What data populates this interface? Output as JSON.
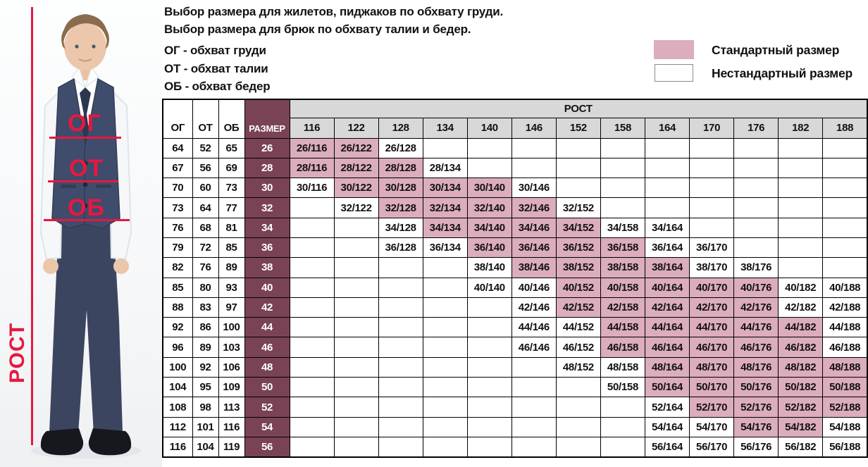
{
  "header": {
    "title_line1": "Выбор размера для жилетов, пиджаков по обхвату груди.",
    "title_line2": "Выбор размера для брюк по обхвату талии и бедер.",
    "abbr_chest": "ОГ - обхват груди",
    "abbr_waist": "ОТ - обхват талии",
    "abbr_hips": "ОБ - обхват бедер"
  },
  "legend": {
    "standard_label": "Стандартный размер",
    "nonstandard_label": "Нестандартный размер",
    "standard_color": "#dcadbc",
    "nonstandard_color": "#ffffff"
  },
  "photo": {
    "chest_label": "ОГ",
    "waist_label": "ОТ",
    "hips_label": "ОБ",
    "height_label": "РОСТ",
    "line_color": "#e8173f"
  },
  "colors": {
    "standard_fill": "#dcadbc",
    "size_column_fill": "#794355",
    "header_gray": "#d8d8d8",
    "border": "#000000"
  },
  "chart_data": {
    "type": "table",
    "title": "Выбор размера для жилетов, пиджаков по обхвату груди. Выбор размера для брюк по обхвату талии и бедер.",
    "legend": {
      "standard": "Стандартный размер",
      "nonstandard": "Нестандартный размер"
    },
    "measure_headers": {
      "og": "ОГ",
      "ot": "ОТ",
      "ob": "ОБ",
      "size": "РАЗМЕР"
    },
    "rost_group_label": "РОСТ",
    "heights": [
      116,
      122,
      128,
      134,
      140,
      146,
      152,
      158,
      164,
      170,
      176,
      182,
      188
    ],
    "rows": [
      {
        "og": 64,
        "ot": 52,
        "ob": 65,
        "size": 26,
        "cells": [
          {
            "label": "26/116",
            "standard": true
          },
          {
            "label": "26/122",
            "standard": true
          },
          {
            "label": "26/128",
            "standard": false
          },
          null,
          null,
          null,
          null,
          null,
          null,
          null,
          null,
          null,
          null
        ]
      },
      {
        "og": 67,
        "ot": 56,
        "ob": 69,
        "size": 28,
        "cells": [
          {
            "label": "28/116",
            "standard": true
          },
          {
            "label": "28/122",
            "standard": true
          },
          {
            "label": "28/128",
            "standard": true
          },
          {
            "label": "28/134",
            "standard": false
          },
          null,
          null,
          null,
          null,
          null,
          null,
          null,
          null,
          null
        ]
      },
      {
        "og": 70,
        "ot": 60,
        "ob": 73,
        "size": 30,
        "cells": [
          {
            "label": "30/116",
            "standard": false
          },
          {
            "label": "30/122",
            "standard": true
          },
          {
            "label": "30/128",
            "standard": true
          },
          {
            "label": "30/134",
            "standard": true
          },
          {
            "label": "30/140",
            "standard": true
          },
          {
            "label": "30/146",
            "standard": false
          },
          null,
          null,
          null,
          null,
          null,
          null,
          null
        ]
      },
      {
        "og": 73,
        "ot": 64,
        "ob": 77,
        "size": 32,
        "cells": [
          null,
          {
            "label": "32/122",
            "standard": false
          },
          {
            "label": "32/128",
            "standard": true
          },
          {
            "label": "32/134",
            "standard": true
          },
          {
            "label": "32/140",
            "standard": true
          },
          {
            "label": "32/146",
            "standard": true
          },
          {
            "label": "32/152",
            "standard": false
          },
          null,
          null,
          null,
          null,
          null,
          null
        ]
      },
      {
        "og": 76,
        "ot": 68,
        "ob": 81,
        "size": 34,
        "cells": [
          null,
          null,
          {
            "label": "34/128",
            "standard": false
          },
          {
            "label": "34/134",
            "standard": true
          },
          {
            "label": "34/140",
            "standard": true
          },
          {
            "label": "34/146",
            "standard": true
          },
          {
            "label": "34/152",
            "standard": true
          },
          {
            "label": "34/158",
            "standard": false
          },
          {
            "label": "34/164",
            "standard": false
          },
          null,
          null,
          null,
          null
        ]
      },
      {
        "og": 79,
        "ot": 72,
        "ob": 85,
        "size": 36,
        "cells": [
          null,
          null,
          {
            "label": "36/128",
            "standard": false
          },
          {
            "label": "36/134",
            "standard": false
          },
          {
            "label": "36/140",
            "standard": true
          },
          {
            "label": "36/146",
            "standard": true
          },
          {
            "label": "36/152",
            "standard": true
          },
          {
            "label": "36/158",
            "standard": true
          },
          {
            "label": "36/164",
            "standard": false
          },
          {
            "label": "36/170",
            "standard": false
          },
          null,
          null,
          null
        ]
      },
      {
        "og": 82,
        "ot": 76,
        "ob": 89,
        "size": 38,
        "cells": [
          null,
          null,
          null,
          null,
          {
            "label": "38/140",
            "standard": false
          },
          {
            "label": "38/146",
            "standard": true
          },
          {
            "label": "38/152",
            "standard": true
          },
          {
            "label": "38/158",
            "standard": true
          },
          {
            "label": "38/164",
            "standard": true
          },
          {
            "label": "38/170",
            "standard": false
          },
          {
            "label": "38/176",
            "standard": false
          },
          null,
          null
        ]
      },
      {
        "og": 85,
        "ot": 80,
        "ob": 93,
        "size": 40,
        "cells": [
          null,
          null,
          null,
          null,
          {
            "label": "40/140",
            "standard": false
          },
          {
            "label": "40/146",
            "standard": false
          },
          {
            "label": "40/152",
            "standard": true
          },
          {
            "label": "40/158",
            "standard": true
          },
          {
            "label": "40/164",
            "standard": true
          },
          {
            "label": "40/170",
            "standard": true
          },
          {
            "label": "40/176",
            "standard": true
          },
          {
            "label": "40/182",
            "standard": false
          },
          {
            "label": "40/188",
            "standard": false
          }
        ]
      },
      {
        "og": 88,
        "ot": 83,
        "ob": 97,
        "size": 42,
        "cells": [
          null,
          null,
          null,
          null,
          null,
          {
            "label": "42/146",
            "standard": false
          },
          {
            "label": "42/152",
            "standard": true
          },
          {
            "label": "42/158",
            "standard": true
          },
          {
            "label": "42/164",
            "standard": true
          },
          {
            "label": "42/170",
            "standard": true
          },
          {
            "label": "42/176",
            "standard": true
          },
          {
            "label": "42/182",
            "standard": false
          },
          {
            "label": "42/188",
            "standard": false
          }
        ]
      },
      {
        "og": 92,
        "ot": 86,
        "ob": 100,
        "size": 44,
        "cells": [
          null,
          null,
          null,
          null,
          null,
          {
            "label": "44/146",
            "standard": false
          },
          {
            "label": "44/152",
            "standard": false
          },
          {
            "label": "44/158",
            "standard": true
          },
          {
            "label": "44/164",
            "standard": true
          },
          {
            "label": "44/170",
            "standard": true
          },
          {
            "label": "44/176",
            "standard": true
          },
          {
            "label": "44/182",
            "standard": true
          },
          {
            "label": "44/188",
            "standard": false
          }
        ]
      },
      {
        "og": 96,
        "ot": 89,
        "ob": 103,
        "size": 46,
        "cells": [
          null,
          null,
          null,
          null,
          null,
          {
            "label": "46/146",
            "standard": false
          },
          {
            "label": "46/152",
            "standard": false
          },
          {
            "label": "46/158",
            "standard": true
          },
          {
            "label": "46/164",
            "standard": true
          },
          {
            "label": "46/170",
            "standard": true
          },
          {
            "label": "46/176",
            "standard": true
          },
          {
            "label": "46/182",
            "standard": true
          },
          {
            "label": "46/188",
            "standard": false
          }
        ]
      },
      {
        "og": 100,
        "ot": 92,
        "ob": 106,
        "size": 48,
        "cells": [
          null,
          null,
          null,
          null,
          null,
          null,
          {
            "label": "48/152",
            "standard": false
          },
          {
            "label": "48/158",
            "standard": false
          },
          {
            "label": "48/164",
            "standard": true
          },
          {
            "label": "48/170",
            "standard": true
          },
          {
            "label": "48/176",
            "standard": true
          },
          {
            "label": "48/182",
            "standard": true
          },
          {
            "label": "48/188",
            "standard": true
          }
        ]
      },
      {
        "og": 104,
        "ot": 95,
        "ob": 109,
        "size": 50,
        "cells": [
          null,
          null,
          null,
          null,
          null,
          null,
          null,
          {
            "label": "50/158",
            "standard": false
          },
          {
            "label": "50/164",
            "standard": true
          },
          {
            "label": "50/170",
            "standard": true
          },
          {
            "label": "50/176",
            "standard": true
          },
          {
            "label": "50/182",
            "standard": true
          },
          {
            "label": "50/188",
            "standard": true
          }
        ]
      },
      {
        "og": 108,
        "ot": 98,
        "ob": 113,
        "size": 52,
        "cells": [
          null,
          null,
          null,
          null,
          null,
          null,
          null,
          null,
          {
            "label": "52/164",
            "standard": false
          },
          {
            "label": "52/170",
            "standard": true
          },
          {
            "label": "52/176",
            "standard": true
          },
          {
            "label": "52/182",
            "standard": true
          },
          {
            "label": "52/188",
            "standard": true
          }
        ]
      },
      {
        "og": 112,
        "ot": 101,
        "ob": 116,
        "size": 54,
        "cells": [
          null,
          null,
          null,
          null,
          null,
          null,
          null,
          null,
          {
            "label": "54/164",
            "standard": false
          },
          {
            "label": "54/170",
            "standard": false
          },
          {
            "label": "54/176",
            "standard": true
          },
          {
            "label": "54/182",
            "standard": true
          },
          {
            "label": "54/188",
            "standard": false
          }
        ]
      },
      {
        "og": 116,
        "ot": 104,
        "ob": 119,
        "size": 56,
        "cells": [
          null,
          null,
          null,
          null,
          null,
          null,
          null,
          null,
          {
            "label": "56/164",
            "standard": false
          },
          {
            "label": "56/170",
            "standard": false
          },
          {
            "label": "56/176",
            "standard": false
          },
          {
            "label": "56/182",
            "standard": false
          },
          {
            "label": "56/188",
            "standard": false
          }
        ]
      }
    ]
  }
}
